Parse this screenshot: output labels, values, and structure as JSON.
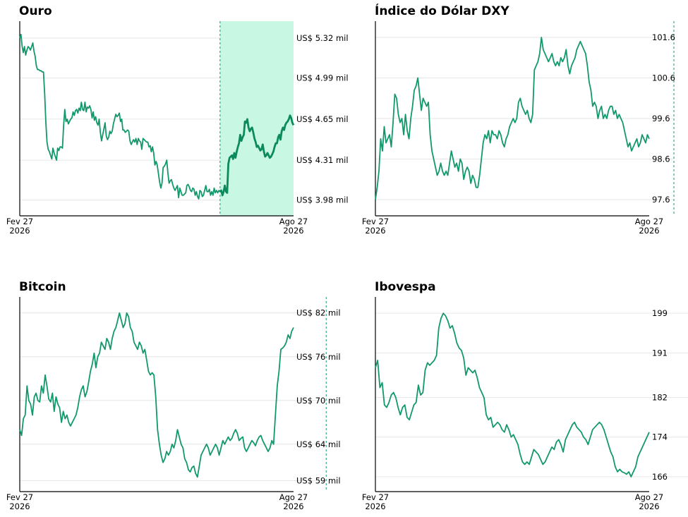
{
  "colors": {
    "line": "#12996a",
    "highlight": "#c8f7e4"
  },
  "chart_data": [
    {
      "type": "line",
      "title": "Ouro",
      "x_start_label": [
        "Fev 27",
        "2026"
      ],
      "x_end_label": [
        "Ago 27",
        "2026"
      ],
      "ylim": [
        3.85,
        5.46
      ],
      "yticks": [
        3.98,
        4.31,
        4.65,
        4.99,
        5.32
      ],
      "ytick_labels": [
        "US$ 3.98 mil",
        "US$ 4.31 mil",
        "US$ 4.65 mil",
        "US$ 4.99 mil",
        "US$ 5.32 mil"
      ],
      "highlight_from": 169,
      "values": [
        5.32,
        5.35,
        5.25,
        5.2,
        5.25,
        5.18,
        5.22,
        5.25,
        5.24,
        5.22,
        5.25,
        5.28,
        5.21,
        5.17,
        5.09,
        5.06,
        5.06,
        5.05,
        5.05,
        5.04,
        5.04,
        4.86,
        4.62,
        4.46,
        4.4,
        4.38,
        4.35,
        4.32,
        4.41,
        4.37,
        4.34,
        4.31,
        4.41,
        4.39,
        4.42,
        4.42,
        4.41,
        4.59,
        4.73,
        4.63,
        4.65,
        4.61,
        4.63,
        4.65,
        4.66,
        4.71,
        4.68,
        4.72,
        4.73,
        4.7,
        4.74,
        4.72,
        4.79,
        4.73,
        4.72,
        4.79,
        4.71,
        4.75,
        4.74,
        4.76,
        4.73,
        4.66,
        4.71,
        4.64,
        4.67,
        4.62,
        4.6,
        4.65,
        4.54,
        4.47,
        4.52,
        4.57,
        4.62,
        4.51,
        4.48,
        4.5,
        4.55,
        4.53,
        4.55,
        4.61,
        4.65,
        4.69,
        4.67,
        4.68,
        4.7,
        4.63,
        4.65,
        4.56,
        4.56,
        4.54,
        4.55,
        4.56,
        4.55,
        4.47,
        4.44,
        4.46,
        4.48,
        4.46,
        4.49,
        4.44,
        4.49,
        4.47,
        4.46,
        4.4,
        4.49,
        4.48,
        4.47,
        4.46,
        4.46,
        4.42,
        4.43,
        4.38,
        4.42,
        4.37,
        4.27,
        4.3,
        4.27,
        4.2,
        4.13,
        4.08,
        4.12,
        4.25,
        4.26,
        4.28,
        4.31,
        4.2,
        4.12,
        4.14,
        4.15,
        4.11,
        4.08,
        4.06,
        4.08,
        4.1,
        4.0,
        4.08,
        4.05,
        4.02,
        4.02,
        4.03,
        4.04,
        4.1,
        4.11,
        4.09,
        4.06,
        4.05,
        4.08,
        4.07,
        4.02,
        4.05,
        4.01,
        3.99,
        4.06,
        4.05,
        4.01,
        4.02,
        4.06,
        4.1,
        4.05,
        4.05,
        4.07,
        4.02,
        4.05,
        4.02,
        4.08,
        4.04,
        4.06,
        4.04,
        4.06,
        4.05,
        4.06,
        4.02,
        4.05,
        4.1,
        4.05,
        4.04,
        4.28,
        4.33,
        4.34,
        4.35,
        4.32,
        4.37,
        4.33,
        4.38,
        4.42,
        4.45,
        4.52,
        4.47,
        4.5,
        4.52,
        4.63,
        4.62,
        4.65,
        4.58,
        4.55,
        4.57,
        4.58,
        4.54,
        4.49,
        4.46,
        4.42,
        4.43,
        4.41,
        4.39,
        4.4,
        4.44,
        4.38,
        4.34,
        4.35,
        4.37,
        4.35,
        4.33,
        4.34,
        4.36,
        4.38,
        4.42,
        4.45,
        4.45,
        4.5,
        4.52,
        4.48,
        4.55,
        4.58,
        4.56,
        4.6,
        4.62,
        4.63,
        4.65,
        4.68,
        4.66,
        4.62,
        4.6
      ]
    },
    {
      "type": "line",
      "title": "Índice do Dólar DXY",
      "x_start_label": [
        "Fev 27",
        "2026"
      ],
      "x_end_label": [
        "Ago 27",
        "2026"
      ],
      "ylim": [
        97.2,
        102.0
      ],
      "yticks": [
        97.6,
        98.6,
        99.6,
        100.6,
        101.6
      ],
      "ytick_labels": [
        "97.6",
        "98.6",
        "99.6",
        "100.6",
        "101.6"
      ],
      "highlight_from": 169,
      "values": [
        97.6,
        97.9,
        98.3,
        99.1,
        98.8,
        99.4,
        99.0,
        99.1,
        99.2,
        98.9,
        99.5,
        100.2,
        100.1,
        99.7,
        99.5,
        99.6,
        99.2,
        99.7,
        99.3,
        99.1,
        99.6,
        99.9,
        100.3,
        100.4,
        100.6,
        100.2,
        99.8,
        100.1,
        100.0,
        99.9,
        100.0,
        99.2,
        98.8,
        98.6,
        98.4,
        98.2,
        98.3,
        98.5,
        98.3,
        98.2,
        98.3,
        98.2,
        98.5,
        98.8,
        98.6,
        98.4,
        98.5,
        98.3,
        98.6,
        98.5,
        98.1,
        98.3,
        98.4,
        98.3,
        98.0,
        98.2,
        98.1,
        97.9,
        97.9,
        98.2,
        98.6,
        99.0,
        99.2,
        99.1,
        99.3,
        99.0,
        99.3,
        99.2,
        99.2,
        99.1,
        99.3,
        99.2,
        99.0,
        98.9,
        99.1,
        99.2,
        99.4,
        99.5,
        99.6,
        99.5,
        99.6,
        100.0,
        100.1,
        99.9,
        99.8,
        99.7,
        99.8,
        99.6,
        99.5,
        99.7,
        100.8,
        100.9,
        101.0,
        101.2,
        101.6,
        101.3,
        101.2,
        101.1,
        101.0,
        101.1,
        101.2,
        101.0,
        100.9,
        101.0,
        100.9,
        101.1,
        101.0,
        101.1,
        101.3,
        100.9,
        100.7,
        100.9,
        101.0,
        101.1,
        101.3,
        101.4,
        101.5,
        101.4,
        101.3,
        101.2,
        100.9,
        100.5,
        100.3,
        99.9,
        100.0,
        99.9,
        99.6,
        99.8,
        99.9,
        99.6,
        99.7,
        99.6,
        99.8,
        99.9,
        99.9,
        99.7,
        99.8,
        99.6,
        99.7,
        99.6,
        99.5,
        99.3,
        99.1,
        98.9,
        99.0,
        98.8,
        98.9,
        99.0,
        99.1,
        98.9,
        99.0,
        99.2,
        99.1,
        99.0,
        99.2,
        99.1
      ]
    },
    {
      "type": "line",
      "title": "Bitcoin",
      "x_start_label": [
        "Fev 27",
        "2026"
      ],
      "x_end_label": [
        "Ago 27",
        "2026"
      ],
      "ylim": [
        57.5,
        84.2
      ],
      "yticks": [
        59,
        64,
        70,
        76,
        82
      ],
      "ytick_labels": [
        "US$ 59 mil",
        "US$ 64 mil",
        "US$ 70 mil",
        "US$ 76 mil",
        "US$ 82 mil"
      ],
      "highlight_from": 169,
      "values": [
        66.0,
        65.2,
        67.5,
        68.0,
        72.0,
        70.0,
        69.5,
        68.0,
        70.5,
        71.0,
        70.0,
        69.8,
        72.0,
        71.0,
        73.5,
        72.0,
        70.2,
        69.8,
        71.0,
        68.5,
        70.5,
        69.5,
        69.0,
        67.0,
        68.5,
        67.5,
        68.0,
        67.0,
        66.5,
        67.0,
        67.5,
        68.0,
        69.0,
        70.5,
        71.5,
        72.0,
        70.5,
        71.2,
        72.5,
        74.0,
        75.0,
        76.5,
        74.5,
        76.0,
        76.5,
        78.0,
        77.5,
        77.0,
        78.5,
        78.0,
        77.0,
        78.5,
        79.5,
        80.0,
        81.0,
        82.0,
        81.0,
        80.0,
        80.5,
        82.0,
        81.5,
        80.0,
        79.5,
        78.0,
        77.5,
        77.0,
        78.0,
        77.5,
        76.5,
        77.0,
        75.5,
        74.0,
        73.5,
        73.8,
        73.5,
        70.5,
        66.0,
        64.0,
        62.5,
        61.5,
        62.0,
        63.0,
        62.5,
        63.0,
        64.0,
        63.5,
        64.5,
        66.0,
        65.0,
        64.0,
        63.5,
        62.0,
        61.5,
        60.5,
        60.2,
        60.8,
        61.0,
        60.0,
        59.5,
        61.0,
        62.5,
        63.0,
        63.5,
        64.0,
        63.5,
        62.5,
        63.0,
        63.5,
        64.0,
        63.5,
        62.5,
        63.5,
        64.5,
        64.0,
        64.5,
        65.0,
        64.5,
        64.8,
        65.5,
        66.0,
        65.5,
        64.5,
        64.8,
        65.0,
        63.5,
        63.0,
        63.5,
        64.0,
        64.5,
        64.2,
        63.8,
        64.5,
        65.0,
        65.2,
        64.5,
        64.0,
        63.5,
        63.0,
        63.5,
        64.5,
        64.0,
        68.0,
        72.0,
        74.0,
        77.0,
        77.2,
        77.5,
        78.0,
        79.0,
        78.5,
        79.5,
        80.0
      ]
    },
    {
      "type": "line",
      "title": "Ibovespa",
      "x_start_label": [
        "Fev 27",
        "2026"
      ],
      "x_end_label": [
        "Ago 27",
        "2026"
      ],
      "ylim": [
        163.0,
        202.3
      ],
      "yticks": [
        166,
        174,
        182,
        191,
        199
      ],
      "ytick_labels": [
        "166",
        "174",
        "182",
        "191",
        "199"
      ],
      "highlight_from": 169,
      "values": [
        188.0,
        189.5,
        184.0,
        185.0,
        180.5,
        180.0,
        181.0,
        182.5,
        183.0,
        182.0,
        180.0,
        178.5,
        180.0,
        180.5,
        178.0,
        177.5,
        179.0,
        180.5,
        181.0,
        184.5,
        182.5,
        183.0,
        187.5,
        189.0,
        188.5,
        189.0,
        189.5,
        190.5,
        196.0,
        198.0,
        199.0,
        198.5,
        197.5,
        196.0,
        196.5,
        195.0,
        193.0,
        192.0,
        191.5,
        190.0,
        186.5,
        188.0,
        187.5,
        187.0,
        187.5,
        186.0,
        184.0,
        183.0,
        182.0,
        178.5,
        177.5,
        178.0,
        176.0,
        176.5,
        177.0,
        176.5,
        175.5,
        175.0,
        176.5,
        175.5,
        174.0,
        174.5,
        173.5,
        172.5,
        170.5,
        169.0,
        168.5,
        169.0,
        168.5,
        170.0,
        171.5,
        171.0,
        170.5,
        169.5,
        168.5,
        169.0,
        170.0,
        171.0,
        172.0,
        171.5,
        173.0,
        173.5,
        172.5,
        171.0,
        173.5,
        174.5,
        175.5,
        176.5,
        177.0,
        176.0,
        175.5,
        175.0,
        174.0,
        173.5,
        172.5,
        174.0,
        175.5,
        176.0,
        176.5,
        177.0,
        176.5,
        175.5,
        174.0,
        172.5,
        171.0,
        170.0,
        168.0,
        167.0,
        167.5,
        167.0,
        166.8,
        166.5,
        167.0,
        166.0,
        167.0,
        168.0,
        170.0,
        171.0,
        172.0,
        173.0,
        174.0,
        175.0
      ]
    }
  ]
}
